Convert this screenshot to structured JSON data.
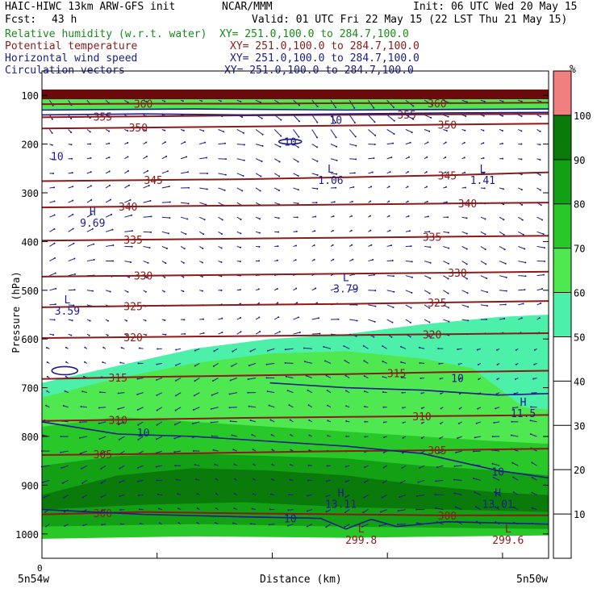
{
  "header": {
    "model": "HAIC-HIWC 13km ARW-GFS init",
    "org": "NCAR/MMM",
    "init": "Init: 06 UTC Wed 20 May 15",
    "fcst_label": "Fcst:",
    "fcst_value": "43 h",
    "valid": "Valid: 01 UTC Fri 22 May 15 (22 LST Thu 21 May 15)",
    "fields": [
      {
        "name": "Relative humidity (w.r.t. water)",
        "xy": "XY= 251.0,100.0 to 284.7,100.0",
        "color": "#1a8a1a"
      },
      {
        "name": "Potential temperature",
        "xy": "XY= 251.0,100.0 to 284.7,100.0",
        "color": "#8b1a1a"
      },
      {
        "name": "Horizontal wind speed",
        "xy": "XY= 251.0,100.0 to 284.7,100.0",
        "color": "#1a1a8b"
      },
      {
        "name": "Circulation vectors",
        "xy": "XY= 251.0,100.0 to 284.7,100.0",
        "color": "#1a1a8b"
      }
    ]
  },
  "chart_data": {
    "type": "cross-section",
    "ylabel": "Pressure (hPa)",
    "xlabel": "Distance (km)",
    "x_left_label": "5n54w",
    "x_right_label": "5n50w",
    "x_origin_label": "0",
    "y_ticks": [
      100,
      200,
      300,
      400,
      500,
      600,
      700,
      800,
      900,
      1000
    ],
    "ylim": [
      1050,
      50
    ],
    "colorbar": {
      "unit": "%",
      "levels": [
        10,
        20,
        30,
        40,
        50,
        60,
        70,
        80,
        90,
        100
      ],
      "colors": [
        "#ffffff",
        "#ffffff",
        "#ffffff",
        "#ffffff",
        "#ffffff",
        "#4df0a8",
        "#50e850",
        "#28c828",
        "#14a014",
        "#0a7a0a",
        "#f08080"
      ]
    },
    "theta_contours": [
      {
        "label": "300",
        "p": [
          960,
          955,
          958,
          960,
          962,
          962
        ],
        "label_pos": [
          0.12,
          0.8
        ]
      },
      {
        "label": "305",
        "p": [
          838,
          836,
          833,
          830,
          828,
          825
        ],
        "label_pos": [
          0.12,
          0.78
        ]
      },
      {
        "label": "310",
        "p": [
          768,
          765,
          762,
          760,
          758,
          756
        ],
        "label_pos": [
          0.15,
          0.75
        ]
      },
      {
        "label": "315",
        "p": [
          682,
          678,
          675,
          672,
          668,
          665
        ],
        "label_pos": [
          0.15,
          0.7
        ]
      },
      {
        "label": "320",
        "p": [
          598,
          596,
          594,
          592,
          590,
          588
        ],
        "label_pos": [
          0.18,
          0.77
        ]
      },
      {
        "label": "325",
        "p": [
          535,
          532,
          530,
          528,
          525,
          522
        ],
        "label_pos": [
          0.18,
          0.78
        ]
      },
      {
        "label": "330",
        "p": [
          472,
          470,
          468,
          466,
          464,
          462
        ],
        "label_pos": [
          0.2,
          0.82
        ]
      },
      {
        "label": "335",
        "p": [
          398,
          396,
          394,
          392,
          390,
          388
        ],
        "label_pos": [
          0.18,
          0.77
        ]
      },
      {
        "label": "340",
        "p": [
          330,
          328,
          326,
          324,
          322,
          320
        ],
        "label_pos": [
          0.17,
          0.84
        ]
      },
      {
        "label": "345",
        "p": [
          276,
          274,
          272,
          268,
          264,
          258
        ],
        "label_pos": [
          0.22,
          0.8
        ]
      },
      {
        "label": "350",
        "p": [
          168,
          166,
          164,
          162,
          160,
          158
        ],
        "label_pos": [
          0.19,
          0.8
        ]
      },
      {
        "label": "355",
        "p": [
          145,
          143,
          141,
          140,
          139,
          138
        ],
        "label_pos": [
          0.12,
          0.72
        ]
      },
      {
        "label": "360",
        "p": [
          118,
          117,
          117,
          116,
          116,
          115
        ],
        "label_pos": [
          0.2,
          0.78
        ]
      }
    ],
    "wind_labels": [
      {
        "text": "10",
        "x": 0.03,
        "p": 225
      },
      {
        "text": "10",
        "x": 0.49,
        "p": 195
      },
      {
        "text": "10",
        "x": 0.58,
        "p": 150
      },
      {
        "text": "10",
        "x": 0.82,
        "p": 680
      },
      {
        "text": "10",
        "x": 0.2,
        "p": 792
      },
      {
        "text": "10",
        "x": 0.9,
        "p": 872
      },
      {
        "text": "10",
        "x": 0.49,
        "p": 968
      }
    ],
    "extrema": [
      {
        "kind": "L",
        "value": "1.06",
        "x": 0.57,
        "p": 262,
        "color": "#1a1a8b"
      },
      {
        "kind": "L",
        "value": "1.41",
        "x": 0.87,
        "p": 262,
        "color": "#1a1a8b"
      },
      {
        "kind": "H",
        "value": "9.69",
        "x": 0.1,
        "p": 350,
        "color": "#1a1a8b"
      },
      {
        "kind": "L",
        "value": "3.79",
        "x": 0.6,
        "p": 485,
        "color": "#1a1a8b"
      },
      {
        "kind": "L",
        "value": "3.59",
        "x": 0.05,
        "p": 530,
        "color": "#1a1a8b"
      },
      {
        "kind": "H",
        "value": "11.5",
        "x": 0.95,
        "p": 740,
        "color": "#1a1a8b"
      },
      {
        "kind": "H",
        "value": "13.11",
        "x": 0.59,
        "p": 927,
        "color": "#1a1a8b"
      },
      {
        "kind": "H",
        "value": "13.01",
        "x": 0.9,
        "p": 927,
        "color": "#1a1a8b"
      },
      {
        "kind": "L",
        "value": "299.8",
        "x": 0.63,
        "p": 1000,
        "color": "#8b1a1a"
      },
      {
        "kind": "L",
        "value": "299.6",
        "x": 0.92,
        "p": 1000,
        "color": "#8b1a1a"
      }
    ]
  }
}
